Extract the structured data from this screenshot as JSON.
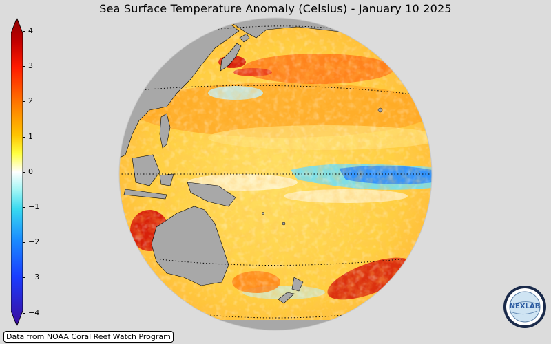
{
  "title": "Sea Surface Temperature Anomaly (Celsius) - January 10 2025",
  "colorbar": {
    "ticks": [
      "4",
      "3",
      "2",
      "1",
      "0",
      "−1",
      "−2",
      "−3",
      "−4"
    ],
    "colors": {
      "top": "#8b0000",
      "hot": "#e8401a",
      "warm": "#ff9a00",
      "mild": "#ffff40",
      "neutral": "#ffffff",
      "cool": "#55e6f0",
      "cold": "#1a6bff",
      "bottom": "#3d0b9a"
    }
  },
  "map": {
    "ocean_warm_color": "#ffd24a",
    "land_color": "#a8a8a8",
    "cold_band_color": "#3aa0ff"
  },
  "credit": "Data from NOAA Coral Reef Watch Program",
  "logo": {
    "text": "NEXLAB"
  }
}
